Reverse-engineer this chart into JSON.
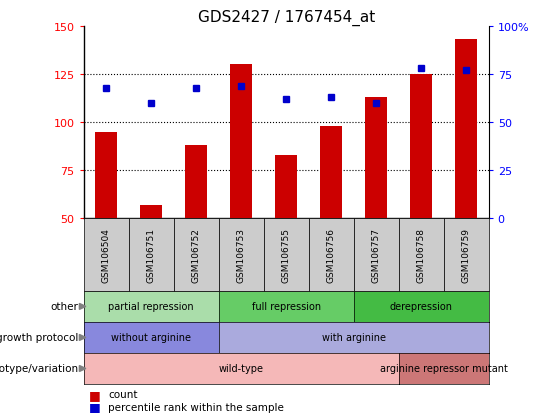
{
  "title": "GDS2427 / 1767454_at",
  "samples": [
    "GSM106504",
    "GSM106751",
    "GSM106752",
    "GSM106753",
    "GSM106755",
    "GSM106756",
    "GSM106757",
    "GSM106758",
    "GSM106759"
  ],
  "counts": [
    95,
    57,
    88,
    130,
    83,
    98,
    113,
    125,
    143
  ],
  "percentile_ranks": [
    118,
    110,
    118,
    119,
    112,
    113,
    110,
    128,
    127
  ],
  "ylim_left": [
    50,
    150
  ],
  "ylim_right": [
    0,
    100
  ],
  "yticks_left": [
    50,
    75,
    100,
    125,
    150
  ],
  "yticks_right": [
    0,
    25,
    50,
    75,
    100
  ],
  "bar_color": "#cc0000",
  "dot_color": "#0000cc",
  "title_fontsize": 11,
  "annotation_rows": [
    {
      "label": "other",
      "segments": [
        {
          "text": "partial repression",
          "start": 0,
          "end": 3,
          "color": "#aaddaa"
        },
        {
          "text": "full repression",
          "start": 3,
          "end": 6,
          "color": "#66cc66"
        },
        {
          "text": "derepression",
          "start": 6,
          "end": 9,
          "color": "#44bb44"
        }
      ]
    },
    {
      "label": "growth protocol",
      "segments": [
        {
          "text": "without arginine",
          "start": 0,
          "end": 3,
          "color": "#8888dd"
        },
        {
          "text": "with arginine",
          "start": 3,
          "end": 9,
          "color": "#aaaadd"
        }
      ]
    },
    {
      "label": "genotype/variation",
      "segments": [
        {
          "text": "wild-type",
          "start": 0,
          "end": 7,
          "color": "#f5b8b8"
        },
        {
          "text": "arginine repressor mutant",
          "start": 7,
          "end": 9,
          "color": "#cc7777"
        }
      ]
    }
  ],
  "xtick_bg_color": "#cccccc",
  "legend_items": [
    {
      "label": "count",
      "color": "#cc0000"
    },
    {
      "label": "percentile rank within the sample",
      "color": "#0000cc"
    }
  ]
}
